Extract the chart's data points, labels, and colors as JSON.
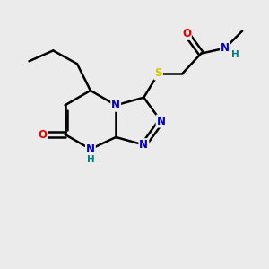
{
  "bg_color": "#ebebeb",
  "atom_colors": {
    "C": "#000000",
    "N": "#0000cc",
    "O": "#ee0000",
    "S": "#cccc00",
    "H": "#008080"
  },
  "bond_color": "#000000",
  "figsize": [
    3.0,
    3.0
  ],
  "dpi": 100
}
